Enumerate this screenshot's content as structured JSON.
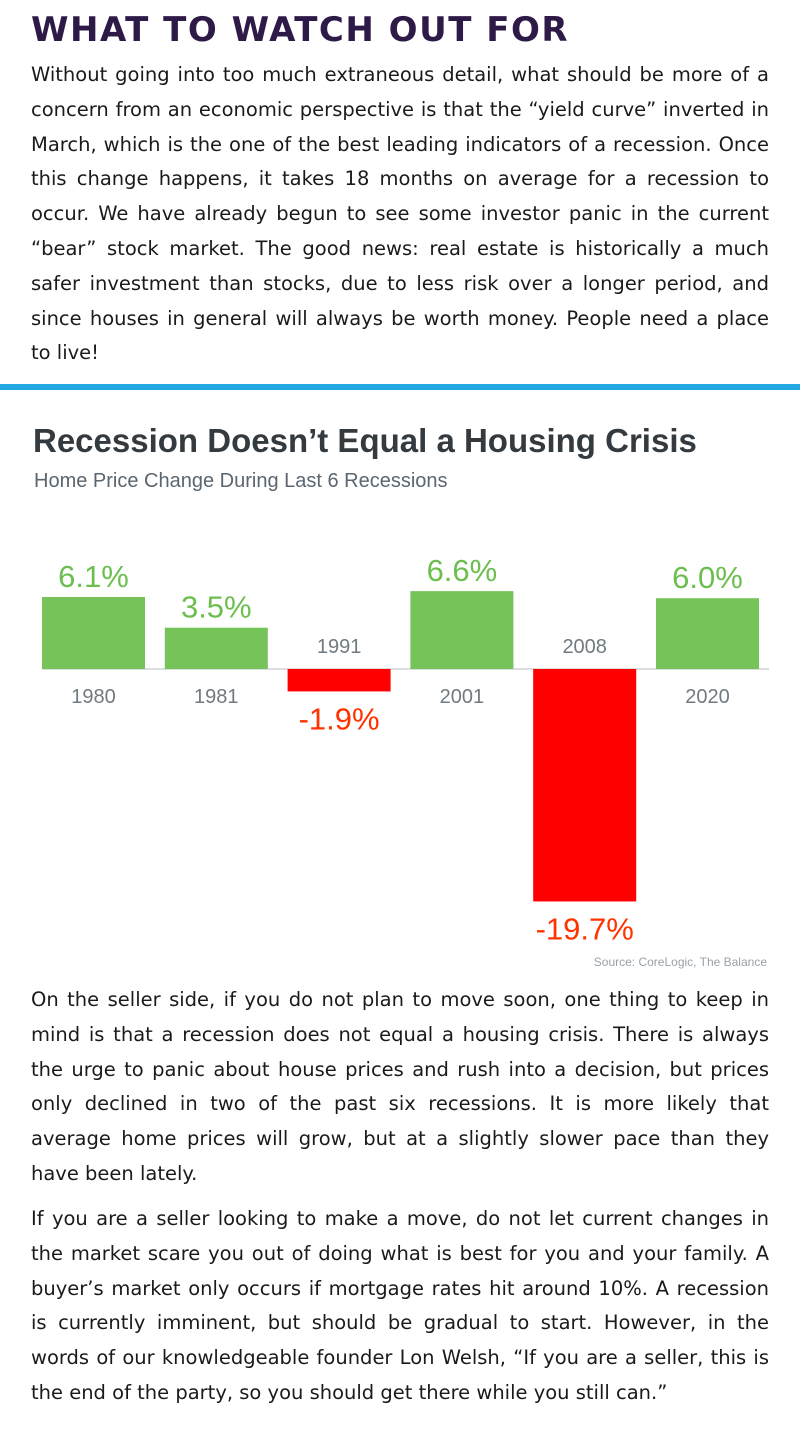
{
  "article": {
    "heading": "WHAT TO WATCH OUT FOR",
    "paragraph1": "Without going into too much extraneous detail, what should be more of a concern from an economic perspective is that the “yield curve” inverted in March, which is the one of the best leading indicators of a recession. Once this change happens, it takes 18 months on average for a recession to occur. We have already begun to see some investor panic in the current “bear” stock market. The good news: real estate is historically a much safer investment than stocks, due to less risk over a longer period, and since houses in general will always be worth money. People need a place to live!",
    "paragraph2": "On the seller side, if you do not plan to move soon, one thing to keep in mind is that a recession does not equal a housing crisis. There is always the urge to panic about house prices and rush into a decision, but prices only declined in two of the past six recessions. It is more likely that average home prices will grow, but at a slightly slower pace than they have been lately.",
    "paragraph3": "If you are a seller looking to make a move, do not let current changes in the market scare you out of doing what is best for you and your family. A buyer’s market only occurs if mortgage rates hit around 10%. A recession is currently imminent, but should be gradual to start. However, in the words of our knowledgeable founder Lon Welsh, “If you are a seller, this is the end of the party, so you should get there while you still can.”"
  },
  "colors": {
    "heading": "#2e1a47",
    "divider": "#23a9e1",
    "positive_bar": "#76c35a",
    "negative_bar": "#ff0000",
    "positive_label": "#6cbf4f",
    "negative_label": "#ff3300",
    "category_label": "#707a80"
  },
  "chart_data": {
    "type": "bar",
    "title": "Recession Doesn’t Equal a Housing Crisis",
    "subtitle": "Home Price Change During Last 6 Recessions",
    "source": "Source: CoreLogic, The Balance",
    "categories": [
      "1980",
      "1981",
      "1991",
      "2001",
      "2008",
      "2020"
    ],
    "values": [
      6.1,
      3.5,
      -1.9,
      6.6,
      -19.7,
      6.0
    ],
    "data_labels": [
      "6.1%",
      "3.5%",
      "-1.9%",
      "6.6%",
      "-19.7%",
      "6.0%"
    ],
    "xlabel": "",
    "ylabel": "",
    "grid": false,
    "legend": "none"
  }
}
